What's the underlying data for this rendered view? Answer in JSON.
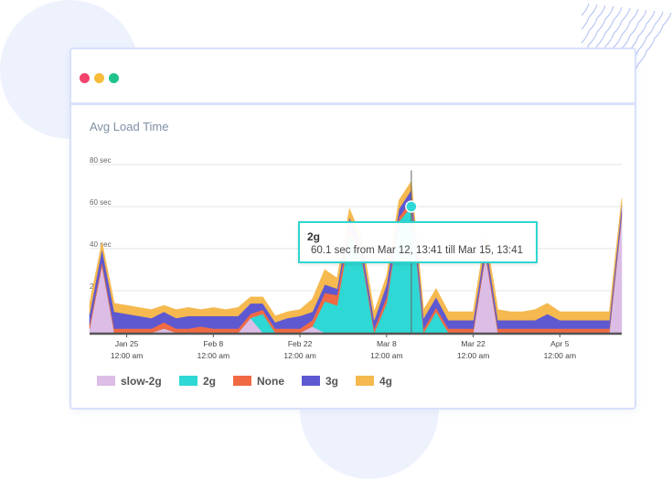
{
  "window": {
    "traffic_lights": [
      {
        "name": "close",
        "color": "#f2436d"
      },
      {
        "name": "minimize",
        "color": "#f7bd3a"
      },
      {
        "name": "maximize",
        "color": "#1fc28b"
      }
    ]
  },
  "chart_data": {
    "type": "area",
    "stacked": true,
    "title": "Avg Load Time",
    "y_unit": "sec",
    "ylim": [
      0,
      80
    ],
    "yticks": [
      {
        "value": 20,
        "label": "20 sec"
      },
      {
        "value": 40,
        "label": "40 sec"
      },
      {
        "value": 60,
        "label": "60 sec"
      },
      {
        "value": 80,
        "label": "80 sec"
      }
    ],
    "xticks": [
      {
        "line1": "Jan 25",
        "line2": "12:00 am",
        "index": 3
      },
      {
        "line1": "Feb 8",
        "line2": "12:00 am",
        "index": 10
      },
      {
        "line1": "Feb 22",
        "line2": "12:00 am",
        "index": 17
      },
      {
        "line1": "Mar 8",
        "line2": "12:00 am",
        "index": 24
      },
      {
        "line1": "Mar 22",
        "line2": "12:00 am",
        "index": 31
      },
      {
        "line1": "Apr 5",
        "line2": "12:00 am",
        "index": 38
      }
    ],
    "x_count": 44,
    "grid": true,
    "legend_position": "bottom-left",
    "series": [
      {
        "name": "slow-2g",
        "color": "#dcbde6",
        "values": [
          2,
          32,
          0,
          0,
          0,
          0,
          2,
          0,
          0,
          0,
          0,
          0,
          0,
          7,
          0,
          0,
          0,
          0,
          3,
          0,
          0,
          0,
          0,
          0,
          0,
          0,
          0,
          0,
          0,
          0,
          0,
          0,
          37,
          0,
          0,
          0,
          0,
          0,
          0,
          0,
          0,
          0,
          0,
          55
        ]
      },
      {
        "name": "2g",
        "color": "#2ed8d4",
        "values": [
          0,
          0,
          0,
          0,
          0,
          0,
          0,
          0,
          0,
          0,
          0,
          0,
          0,
          0,
          9,
          0,
          0,
          0,
          0,
          15,
          13,
          47,
          35,
          0,
          14,
          53,
          60,
          0,
          10,
          0,
          0,
          0,
          0,
          0,
          0,
          0,
          0,
          0,
          0,
          0,
          0,
          0,
          0,
          0
        ]
      },
      {
        "name": "None",
        "color": "#f06a43",
        "values": [
          2,
          2,
          2,
          2,
          2,
          2,
          3,
          2,
          2,
          3,
          2,
          2,
          2,
          2,
          2,
          2,
          2,
          2,
          3,
          4,
          5,
          3,
          2,
          2,
          3,
          2,
          3,
          2,
          2,
          2,
          2,
          2,
          2,
          2,
          2,
          2,
          2,
          2,
          2,
          2,
          2,
          2,
          2,
          2
        ]
      },
      {
        "name": "3g",
        "color": "#5e59d1",
        "values": [
          5,
          6,
          8,
          7,
          6,
          5,
          5,
          5,
          6,
          5,
          6,
          6,
          6,
          5,
          3,
          3,
          5,
          6,
          4,
          4,
          3,
          5,
          4,
          4,
          6,
          4,
          5,
          5,
          5,
          4,
          4,
          4,
          4,
          4,
          4,
          4,
          4,
          7,
          4,
          4,
          4,
          4,
          4,
          4
        ]
      },
      {
        "name": "4g",
        "color": "#f5b94f",
        "values": [
          5,
          3,
          4,
          4,
          4,
          4,
          3,
          4,
          4,
          3,
          4,
          3,
          4,
          3,
          3,
          3,
          3,
          3,
          6,
          7,
          5,
          4,
          4,
          4,
          4,
          4,
          4,
          4,
          4,
          4,
          4,
          4,
          4,
          5,
          4,
          4,
          5,
          5,
          4,
          4,
          4,
          4,
          4,
          3
        ]
      }
    ],
    "tooltip": {
      "series": "2g",
      "index": 26,
      "text": "60.1 sec from Mar 12, 13:41 till Mar 15, 13:41"
    }
  }
}
